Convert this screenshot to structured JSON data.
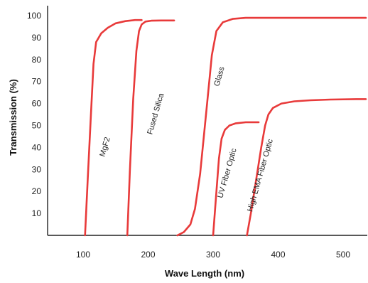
{
  "chart_data": {
    "type": "line",
    "xlabel": "Wave Length (nm)",
    "ylabel": "Transmission (%)",
    "xlim": [
      50,
      540
    ],
    "ylim": [
      0,
      100
    ],
    "x_ticks": [
      100,
      200,
      300,
      400,
      500
    ],
    "y_ticks": [
      10,
      20,
      30,
      40,
      50,
      60,
      70,
      80,
      90,
      100
    ],
    "grid": false,
    "line_color": "#e83a3a",
    "series": [
      {
        "name": "MgF2",
        "x": [
          103,
          107,
          112,
          116,
          120,
          128,
          138,
          150,
          165,
          180,
          190
        ],
        "y": [
          0,
          25,
          55,
          78,
          88,
          92,
          94.5,
          96.5,
          97.5,
          98,
          98
        ]
      },
      {
        "name": "Fused Silica",
        "x": [
          168,
          172,
          177,
          182,
          186,
          190,
          196,
          205,
          220,
          240
        ],
        "y": [
          0,
          30,
          62,
          84,
          93,
          96,
          97.3,
          97.7,
          97.8,
          97.8
        ]
      },
      {
        "name": "Glass",
        "x": [
          245,
          255,
          265,
          272,
          280,
          290,
          298,
          305,
          315,
          330,
          350,
          400,
          450,
          500,
          535
        ],
        "y": [
          0,
          1.5,
          5,
          12,
          28,
          58,
          82,
          93,
          97,
          98.5,
          99,
          99,
          99,
          99,
          99
        ]
      },
      {
        "name": "UV Fiber Optic",
        "x": [
          300,
          304,
          309,
          313,
          318,
          325,
          335,
          350,
          370
        ],
        "y": [
          0,
          16,
          35,
          44,
          48,
          50,
          51,
          51.5,
          51.5
        ]
      },
      {
        "name": "High EMA Fiber Optic",
        "x": [
          352,
          358,
          366,
          374,
          380,
          385,
          392,
          405,
          425,
          450,
          480,
          520,
          535
        ],
        "y": [
          0,
          10,
          25,
          40,
          50,
          55,
          58,
          60,
          61,
          61.5,
          61.8,
          62,
          62
        ]
      }
    ]
  }
}
